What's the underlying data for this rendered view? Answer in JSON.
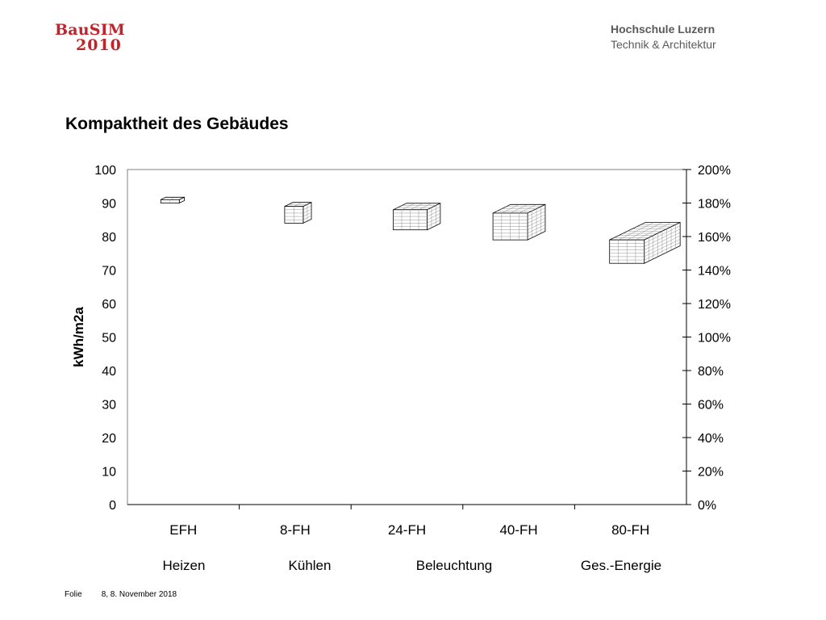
{
  "header": {
    "logo_text": "BauSIM",
    "logo_year": "2010",
    "institution_name": "Hochschule Luzern",
    "institution_sub": "Technik & Architektur"
  },
  "page_title": "Kompaktheit des Gebäudes",
  "chart_data": {
    "type": "bar",
    "title": "",
    "categories": [
      "EFH",
      "8-FH",
      "24-FH",
      "40-FH",
      "80-FH"
    ],
    "values": [
      null,
      null,
      null,
      null,
      null
    ],
    "legend": [
      "Heizen",
      "Kühlen",
      "Beleuchtung",
      "Ges.-Energie"
    ],
    "legend_placement": "bottom",
    "ylabel": "kWh/m2a",
    "ylim": [
      0,
      100
    ],
    "y_ticks": [
      0,
      10,
      20,
      30,
      40,
      50,
      60,
      70,
      80,
      90,
      100
    ],
    "y2_ticks": [
      "0%",
      "20%",
      "40%",
      "60%",
      "80%",
      "100%",
      "120%",
      "140%",
      "160%",
      "180%",
      "200%"
    ],
    "grid": false,
    "building_icons": [
      {
        "category": "EFH",
        "top": 91,
        "bottom": 90
      },
      {
        "category": "8-FH",
        "top": 89,
        "bottom": 84
      },
      {
        "category": "24-FH",
        "top": 88,
        "bottom": 82
      },
      {
        "category": "40-FH",
        "top": 87,
        "bottom": 79
      },
      {
        "category": "80-FH",
        "top": 79,
        "bottom": 72
      }
    ]
  },
  "footer": {
    "folie_label": "Folie",
    "slide_info": "8, 8. November 2018"
  }
}
